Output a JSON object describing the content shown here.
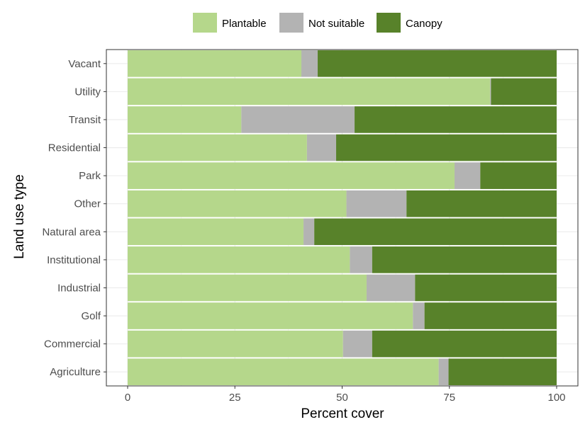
{
  "chart_data": {
    "type": "bar",
    "orientation": "horizontal",
    "stacked": true,
    "xlabel": "Percent cover",
    "ylabel": "Land use type",
    "xlim": [
      0,
      100
    ],
    "xticks": [
      0,
      25,
      50,
      75,
      100
    ],
    "grid": true,
    "legend_position": "top",
    "categories": [
      "Vacant",
      "Utility",
      "Transit",
      "Residential",
      "Park",
      "Other",
      "Natural area",
      "Institutional",
      "Industrial",
      "Golf",
      "Commercial",
      "Agriculture"
    ],
    "series": [
      {
        "name": "Plantable",
        "color": "#b5d78b",
        "values": [
          40.5,
          84.5,
          26.5,
          41.8,
          76.2,
          51.0,
          41.0,
          51.8,
          55.7,
          66.5,
          50.2,
          72.5
        ]
      },
      {
        "name": "Not suitable",
        "color": "#b3b3b3",
        "values": [
          3.8,
          0.2,
          26.4,
          6.8,
          6.0,
          14.0,
          2.5,
          5.2,
          11.3,
          2.7,
          6.8,
          2.3
        ]
      },
      {
        "name": "Canopy",
        "color": "#58822a",
        "values": [
          55.7,
          15.3,
          47.1,
          51.4,
          17.8,
          35.0,
          56.5,
          43.0,
          33.0,
          30.8,
          43.0,
          25.2
        ]
      }
    ]
  }
}
